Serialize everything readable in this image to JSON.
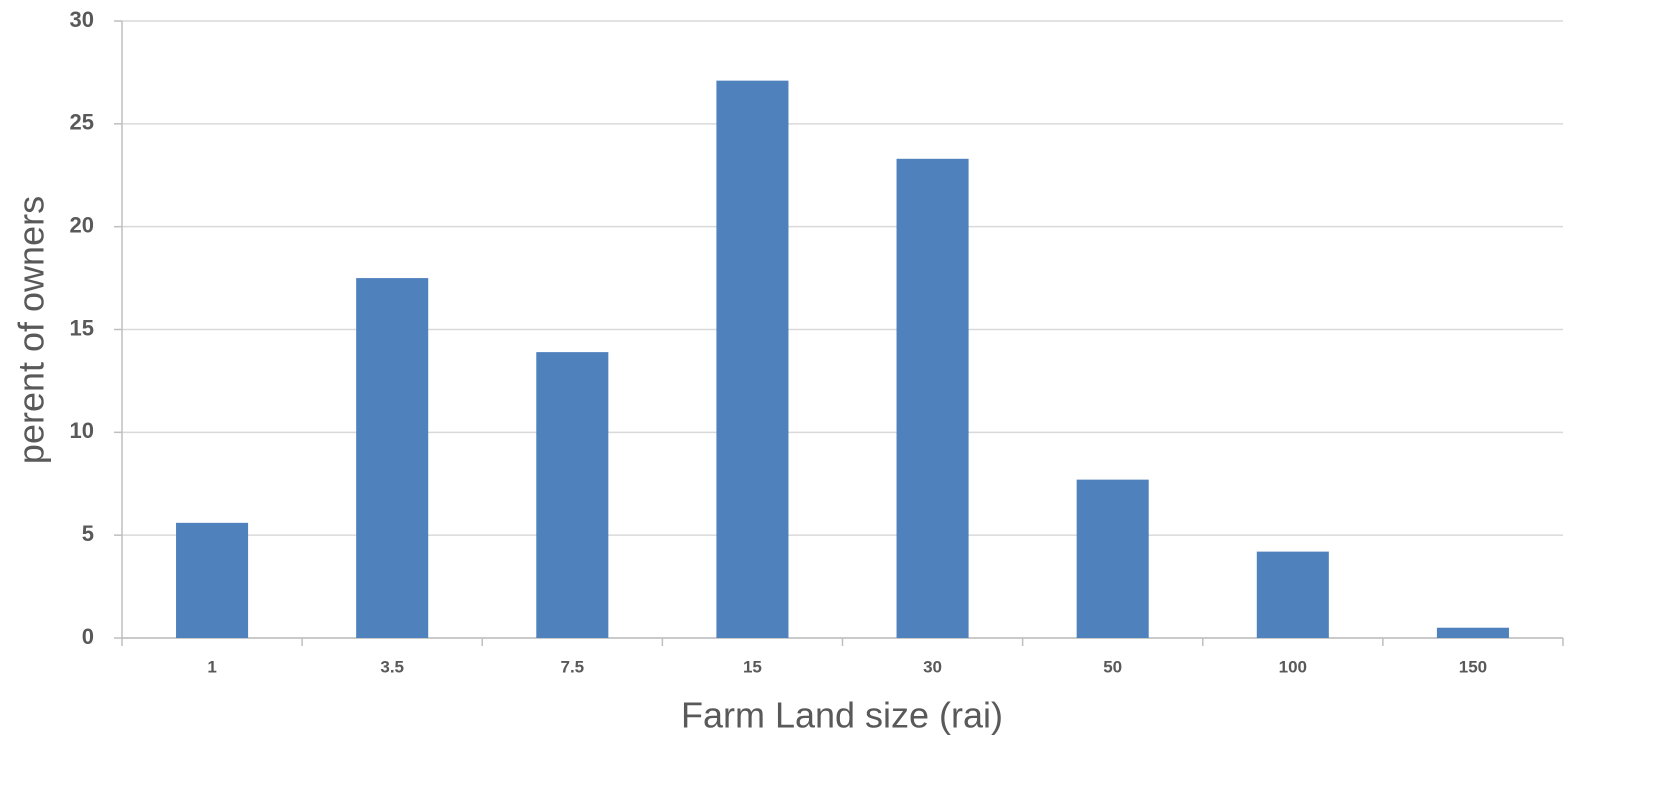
{
  "chart_data": {
    "type": "bar",
    "x_label": "Farm Land size (rai)",
    "y_label": "perent of owners",
    "categories": [
      "1",
      "3.5",
      "7.5",
      "15",
      "30",
      "50",
      "100",
      "150"
    ],
    "values": [
      5.6,
      17.5,
      13.9,
      27.1,
      23.3,
      7.7,
      4.2,
      0.5
    ],
    "color": "#4f81bd",
    "ylim": [
      0,
      30
    ],
    "yticks": [
      0,
      5,
      10,
      15,
      20,
      25,
      30
    ],
    "grid": true
  }
}
